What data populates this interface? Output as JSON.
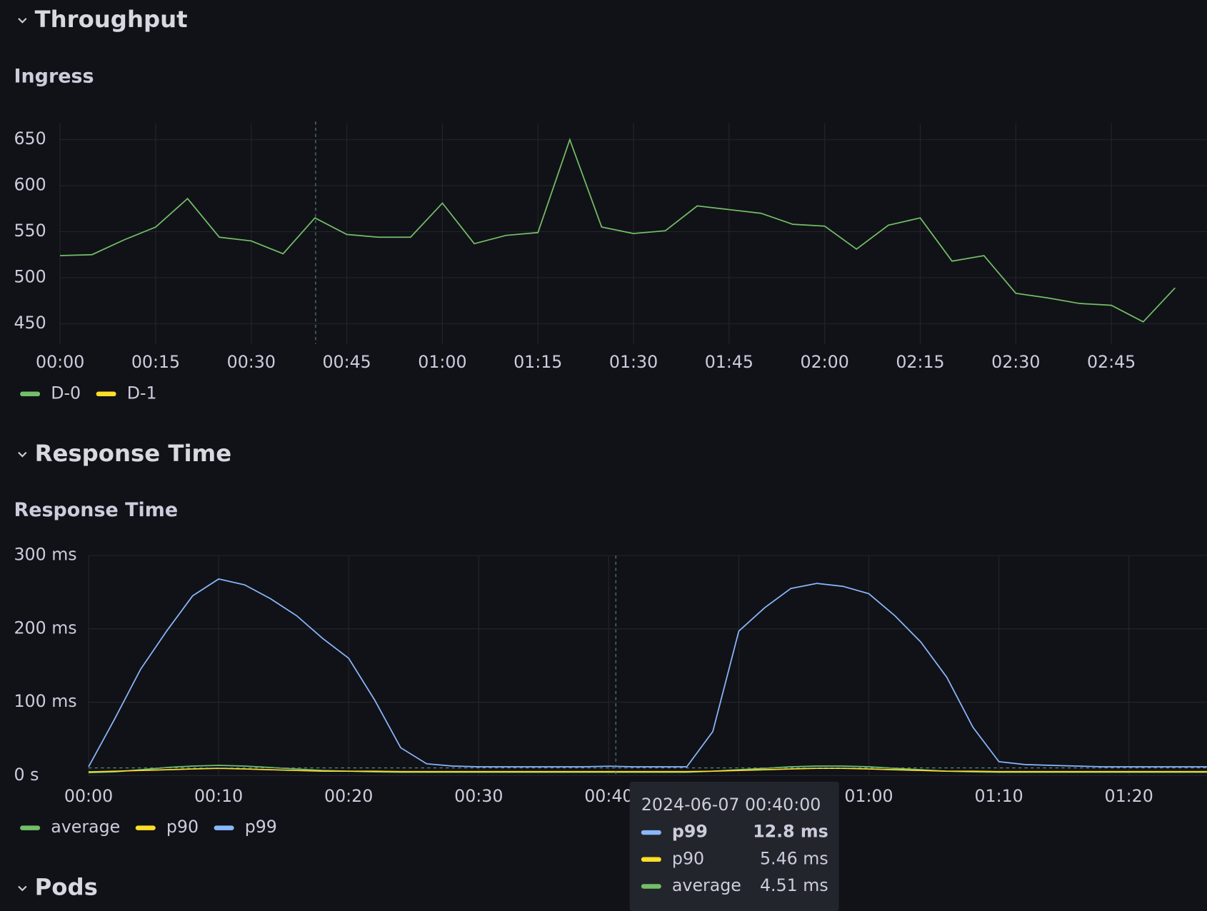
{
  "sections": [
    "Throughput",
    "Response Time",
    "Pods"
  ],
  "chart_data": [
    {
      "type": "line",
      "title": "Ingress",
      "x": [
        0,
        5,
        10,
        15,
        20,
        25,
        30,
        35,
        40,
        45,
        50,
        55,
        60,
        65,
        70,
        75,
        80,
        85,
        90,
        95,
        100,
        105,
        110,
        115,
        120,
        125,
        130,
        135,
        140,
        145,
        150,
        155,
        160,
        165,
        170,
        175
      ],
      "xlim": [
        0,
        180
      ],
      "xticks": [
        {
          "value": 0,
          "label": "00:00"
        },
        {
          "value": 15,
          "label": "00:15"
        },
        {
          "value": 30,
          "label": "00:30"
        },
        {
          "value": 45,
          "label": "00:45"
        },
        {
          "value": 60,
          "label": "01:00"
        },
        {
          "value": 75,
          "label": "01:15"
        },
        {
          "value": 90,
          "label": "01:30"
        },
        {
          "value": 105,
          "label": "01:45"
        },
        {
          "value": 120,
          "label": "02:00"
        },
        {
          "value": 135,
          "label": "02:15"
        },
        {
          "value": 150,
          "label": "02:30"
        },
        {
          "value": 165,
          "label": "02:45"
        }
      ],
      "ylim": [
        428,
        668
      ],
      "yticks": [
        450,
        500,
        550,
        600,
        650
      ],
      "grid": true,
      "series": [
        {
          "name": "D-0",
          "color": "#73bf69",
          "hidden": false,
          "values": [
            524,
            525,
            541,
            555,
            586,
            544,
            540,
            526,
            565,
            547,
            544,
            544,
            581,
            537,
            546,
            549,
            650,
            555,
            548,
            551,
            578,
            574,
            570,
            558,
            556,
            531,
            557,
            565,
            518,
            524,
            483,
            478,
            472,
            470,
            452,
            489
          ]
        },
        {
          "name": "D-1",
          "color": "#fade2a",
          "hidden": true,
          "values": [
            null,
            null,
            null,
            null,
            null,
            null,
            null,
            null,
            null,
            null,
            null,
            null,
            null,
            null,
            null,
            null,
            null,
            null,
            null,
            null,
            null,
            null,
            null,
            null,
            null,
            null,
            null,
            null,
            null,
            null,
            null,
            null,
            null,
            null,
            null,
            null
          ]
        }
      ]
    },
    {
      "type": "line",
      "title": "Response Time",
      "x": [
        0,
        2,
        4,
        6,
        8,
        10,
        12,
        14,
        16,
        18,
        20,
        22,
        24,
        26,
        28,
        30,
        32,
        34,
        36,
        38,
        40,
        42,
        44,
        46,
        48,
        50,
        52,
        54,
        56,
        58,
        60,
        62,
        64,
        66,
        68,
        70,
        72,
        74,
        76,
        78,
        80,
        82,
        84,
        86
      ],
      "xlim": [
        0,
        86
      ],
      "xticks": [
        {
          "value": 0,
          "label": "00:00"
        },
        {
          "value": 10,
          "label": "00:10"
        },
        {
          "value": 20,
          "label": "00:20"
        },
        {
          "value": 30,
          "label": "00:30"
        },
        {
          "value": 40,
          "label": "00:40"
        },
        {
          "value": 50,
          "label": "00:50"
        },
        {
          "value": 60,
          "label": "01:00"
        },
        {
          "value": 70,
          "label": "01:10"
        },
        {
          "value": 80,
          "label": "01:20"
        }
      ],
      "ylim": [
        0,
        300
      ],
      "yticks": [
        {
          "value": 0,
          "label": "0 s"
        },
        {
          "value": 100,
          "label": "100 ms"
        },
        {
          "value": 200,
          "label": "200 ms"
        },
        {
          "value": 300,
          "label": "300 ms"
        }
      ],
      "grid": true,
      "series": [
        {
          "name": "average",
          "color": "#73bf69",
          "hidden": false,
          "values": [
            4,
            5,
            8,
            11,
            13,
            14,
            13,
            11,
            9,
            7,
            6,
            5,
            4.5,
            4.5,
            4.5,
            4.5,
            4.5,
            4.5,
            4.5,
            4.5,
            4.51,
            4.5,
            4.5,
            4.5,
            6,
            8,
            10,
            12,
            13,
            13,
            12,
            10,
            8,
            6,
            5,
            4.5,
            4.5,
            4.5,
            4.5,
            4.5,
            4.5,
            4.5,
            4.5,
            4.5
          ]
        },
        {
          "name": "p90",
          "color": "#fade2a",
          "hidden": false,
          "values": [
            5,
            6,
            7,
            8,
            9,
            10,
            9,
            8,
            7,
            6,
            6,
            6,
            5.5,
            5.5,
            5.5,
            5.5,
            5.5,
            5.5,
            5.5,
            5.5,
            5.46,
            5.5,
            5.5,
            5.5,
            6,
            7,
            8,
            9,
            10,
            10,
            9,
            8,
            7,
            6,
            6,
            5.5,
            5.5,
            5.5,
            5.5,
            5.5,
            5.5,
            5.5,
            5.5,
            5.5
          ]
        },
        {
          "name": "p99",
          "color": "#8ab8ff",
          "hidden": false,
          "values": [
            12,
            77,
            145,
            197,
            245,
            268,
            260,
            241,
            218,
            187,
            160,
            103,
            38,
            16,
            13,
            12,
            12,
            12,
            12,
            12,
            12.8,
            12,
            12,
            12,
            60,
            197,
            229,
            255,
            262,
            258,
            248,
            218,
            182,
            134,
            66,
            19,
            15,
            14,
            13,
            12,
            12,
            12,
            12,
            12
          ]
        }
      ]
    }
  ],
  "tooltip": {
    "time": "2024-06-07 00:40:00",
    "rows": [
      {
        "name": "p99",
        "value": "12.8 ms",
        "color": "#8ab8ff"
      },
      {
        "name": "p90",
        "value": "5.46 ms",
        "color": "#fade2a"
      },
      {
        "name": "average",
        "value": "4.51 ms",
        "color": "#73bf69"
      }
    ]
  }
}
